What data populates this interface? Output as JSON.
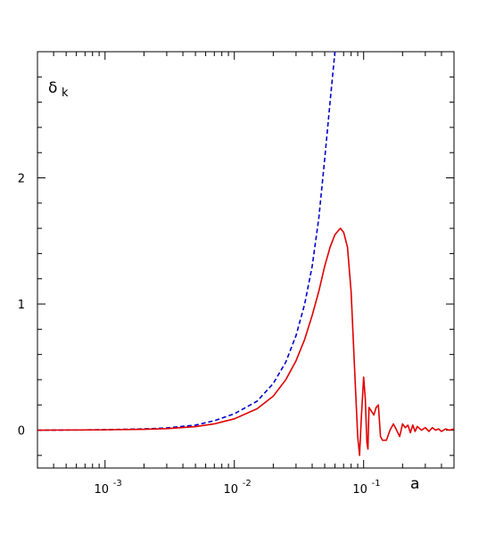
{
  "chart_data": {
    "type": "line",
    "xscale": "log",
    "xlim": [
      0.0003,
      0.5
    ],
    "ylim": [
      -0.3,
      3.0
    ],
    "xlabel": "a",
    "ylabel": {
      "main": "δ",
      "subscript": "k"
    },
    "x_ticks": [
      {
        "value": 0.001,
        "base": "10",
        "exp": "-3"
      },
      {
        "value": 0.01,
        "base": "10",
        "exp": "-2"
      },
      {
        "value": 0.1,
        "base": "10",
        "exp": "-1"
      }
    ],
    "y_ticks": [
      {
        "value": 0,
        "label": "0"
      },
      {
        "value": 1,
        "label": "1"
      },
      {
        "value": 2,
        "label": "2"
      }
    ],
    "grid": false,
    "series": [
      {
        "color": "#0000cc",
        "style": "dashed",
        "points": [
          [
            0.0003,
            0.0
          ],
          [
            0.0007,
            0.002
          ],
          [
            0.001,
            0.004
          ],
          [
            0.002,
            0.01
          ],
          [
            0.003,
            0.018
          ],
          [
            0.005,
            0.04
          ],
          [
            0.007,
            0.075
          ],
          [
            0.01,
            0.13
          ],
          [
            0.015,
            0.23
          ],
          [
            0.02,
            0.37
          ],
          [
            0.025,
            0.54
          ],
          [
            0.03,
            0.75
          ],
          [
            0.035,
            1.0
          ],
          [
            0.04,
            1.3
          ],
          [
            0.045,
            1.68
          ],
          [
            0.05,
            2.15
          ],
          [
            0.055,
            2.6
          ],
          [
            0.06,
            3.0
          ]
        ]
      },
      {
        "color": "#e00000",
        "style": "solid",
        "points": [
          [
            0.0003,
            0.0
          ],
          [
            0.0007,
            0.002
          ],
          [
            0.001,
            0.003
          ],
          [
            0.002,
            0.007
          ],
          [
            0.003,
            0.012
          ],
          [
            0.005,
            0.028
          ],
          [
            0.007,
            0.05
          ],
          [
            0.01,
            0.09
          ],
          [
            0.015,
            0.17
          ],
          [
            0.02,
            0.27
          ],
          [
            0.025,
            0.4
          ],
          [
            0.03,
            0.55
          ],
          [
            0.035,
            0.72
          ],
          [
            0.04,
            0.91
          ],
          [
            0.045,
            1.1
          ],
          [
            0.05,
            1.3
          ],
          [
            0.055,
            1.45
          ],
          [
            0.06,
            1.55
          ],
          [
            0.066,
            1.6
          ],
          [
            0.07,
            1.57
          ],
          [
            0.075,
            1.45
          ],
          [
            0.08,
            1.1
          ],
          [
            0.085,
            0.5
          ],
          [
            0.09,
            -0.05
          ],
          [
            0.093,
            -0.2
          ],
          [
            0.096,
            0.1
          ],
          [
            0.1,
            0.42
          ],
          [
            0.103,
            0.25
          ],
          [
            0.106,
            -0.1
          ],
          [
            0.108,
            -0.15
          ],
          [
            0.11,
            0.18
          ],
          [
            0.115,
            0.15
          ],
          [
            0.12,
            0.12
          ],
          [
            0.125,
            0.18
          ],
          [
            0.13,
            0.2
          ],
          [
            0.135,
            -0.05
          ],
          [
            0.14,
            -0.08
          ],
          [
            0.15,
            -0.08
          ],
          [
            0.16,
            0.0
          ],
          [
            0.17,
            0.05
          ],
          [
            0.18,
            0.0
          ],
          [
            0.19,
            -0.05
          ],
          [
            0.2,
            0.05
          ],
          [
            0.21,
            0.02
          ],
          [
            0.22,
            0.04
          ],
          [
            0.23,
            -0.02
          ],
          [
            0.24,
            0.04
          ],
          [
            0.25,
            -0.01
          ],
          [
            0.26,
            0.03
          ],
          [
            0.28,
            0.0
          ],
          [
            0.3,
            0.02
          ],
          [
            0.32,
            -0.01
          ],
          [
            0.34,
            0.02
          ],
          [
            0.36,
            0.0
          ],
          [
            0.38,
            0.01
          ],
          [
            0.4,
            -0.01
          ],
          [
            0.43,
            0.01
          ],
          [
            0.46,
            0.0
          ],
          [
            0.5,
            0.01
          ]
        ]
      }
    ]
  }
}
